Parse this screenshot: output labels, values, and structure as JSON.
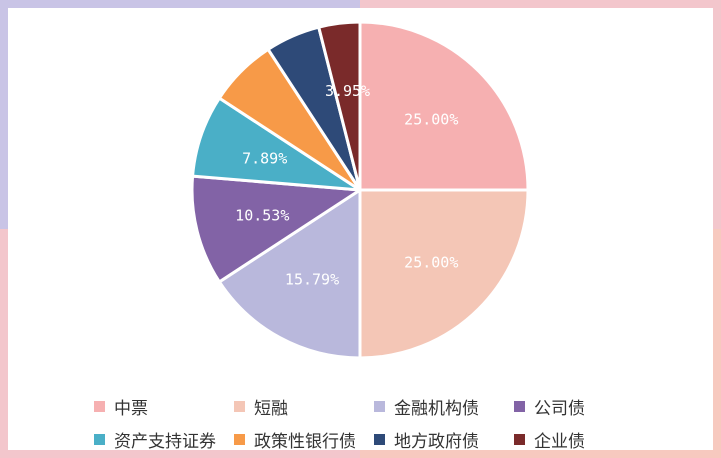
{
  "colors": {
    "background_frame": "#f3c6cc",
    "card": "#ffffff"
  },
  "chart_data": {
    "type": "pie",
    "title": "",
    "legend_position": "bottom",
    "categories": [
      "中票",
      "短融",
      "金融机构债",
      "公司债",
      "资产支持证券",
      "政策性银行债",
      "地方政府债",
      "企业债"
    ],
    "values": [
      25.0,
      25.0,
      15.79,
      10.53,
      7.89,
      6.58,
      5.26,
      3.95
    ],
    "data_labels": [
      "25.00%",
      "25.00%",
      "15.79%",
      "10.53%",
      "7.89%",
      "",
      "",
      "3.95%"
    ],
    "colors": [
      "#f6b0b1",
      "#f4c6b6",
      "#b9b8dc",
      "#8263a6",
      "#4aafc7",
      "#f79a48",
      "#2e4a78",
      "#7a2a2a"
    ],
    "start_angle_deg": 0,
    "direction": "clockwise"
  }
}
